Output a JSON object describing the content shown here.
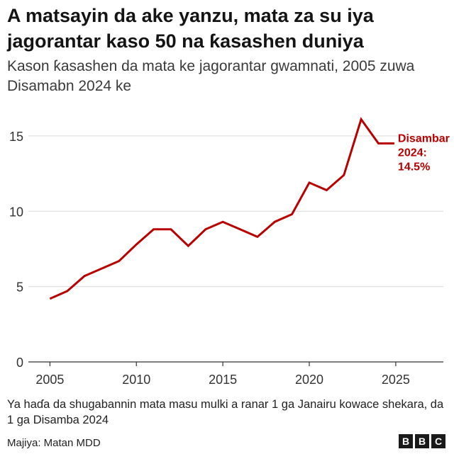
{
  "header": {
    "title": "A matsayin da ake yanzu, mata za su iya jagorantar kaso 50 na ƙasashen duniya",
    "subtitle": "Kason ƙasashen da mata ke jagorantar gwamnati, 2005 zuwa Disamabn 2024 ke"
  },
  "footer": {
    "note": "Ya haɗa da shugabannin mata masu mulki a ranar 1 ga Janairu kowace shekara, da 1 ga Disamba 2024",
    "source": "Majiya: Matan MDD",
    "logo_letters": [
      "B",
      "B",
      "C"
    ]
  },
  "colors": {
    "line": "#b80000",
    "grid": "#d9d9d9",
    "axis": "#333333"
  },
  "chart_data": {
    "type": "line",
    "title": "A matsayin da ake yanzu, mata za su iya jagorantar kaso 50 na ƙasashen duniya",
    "xlabel": "",
    "ylabel": "",
    "xlim": [
      2004,
      2028
    ],
    "ylim": [
      0,
      16.5
    ],
    "x_ticks": [
      2005,
      2010,
      2015,
      2020,
      2025
    ],
    "y_ticks": [
      0,
      5,
      10,
      15
    ],
    "grid": true,
    "series": [
      {
        "name": "Kason ƙasashe",
        "x": [
          2005,
          2006,
          2007,
          2008,
          2009,
          2010,
          2011,
          2012,
          2013,
          2014,
          2015,
          2016,
          2017,
          2018,
          2019,
          2020,
          2021,
          2022,
          2023,
          2024,
          2024.92
        ],
        "values": [
          4.2,
          4.7,
          5.7,
          6.2,
          6.7,
          7.8,
          8.8,
          8.8,
          7.7,
          8.8,
          9.3,
          8.8,
          8.3,
          9.3,
          9.8,
          11.9,
          11.4,
          12.4,
          16.1,
          14.5,
          14.5
        ]
      }
    ],
    "annotation": {
      "label_lines": [
        "Disambar",
        "2024:",
        "14.5%"
      ]
    }
  }
}
